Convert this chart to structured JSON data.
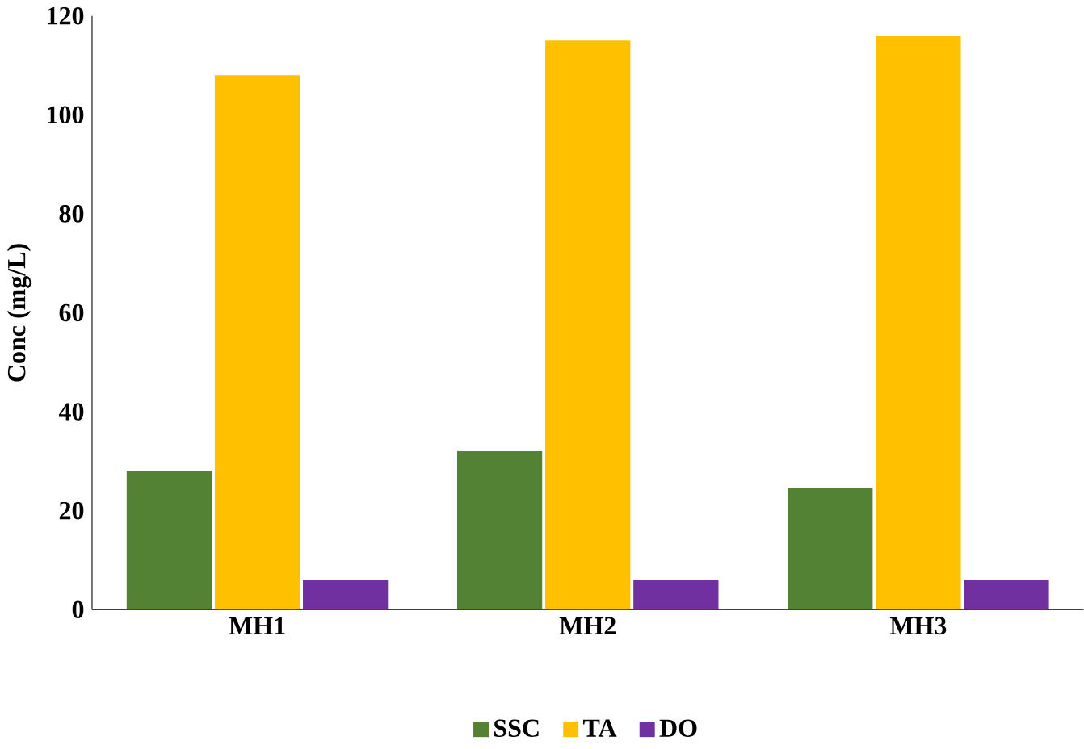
{
  "chart_data": {
    "type": "bar",
    "ylabel": "Conc (mg/L)",
    "categories": [
      "MH1",
      "MH2",
      "MH3"
    ],
    "series": [
      {
        "name": "SSC",
        "color": "#548235",
        "values": [
          28,
          32,
          24.5
        ]
      },
      {
        "name": "TA",
        "color": "#ffc000",
        "values": [
          108,
          115,
          116
        ]
      },
      {
        "name": "DO",
        "color": "#7030a0",
        "values": [
          6,
          6,
          6
        ]
      }
    ],
    "ylim": [
      0,
      120
    ],
    "yticks": [
      0,
      20,
      40,
      60,
      80,
      100,
      120
    ],
    "grid": false,
    "legend": "bottom"
  }
}
